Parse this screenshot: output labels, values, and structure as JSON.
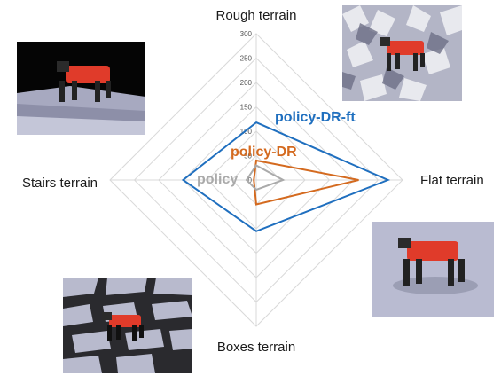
{
  "chart_data": {
    "type": "radar",
    "axes": [
      "Rough terrain",
      "Flat terrain",
      "Boxes terrain",
      "Stairs terrain"
    ],
    "rlim": [
      0,
      300
    ],
    "ticks": [
      0,
      50,
      100,
      150,
      200,
      250,
      300
    ],
    "grid": true,
    "series": [
      {
        "name": "policy-DR-ft",
        "color": "#1f6fbf",
        "values": [
          118,
          270,
          105,
          150
        ]
      },
      {
        "name": "policy-DR",
        "color": "#d46a1f",
        "values": [
          40,
          210,
          50,
          5
        ]
      },
      {
        "name": "policy",
        "color": "#aaaaaa",
        "values": [
          30,
          55,
          20,
          20
        ]
      }
    ]
  },
  "photos": [
    {
      "name": "stairs-robot-photo",
      "caption": ""
    },
    {
      "name": "rough-robot-photo",
      "caption": ""
    },
    {
      "name": "flat-robot-photo",
      "caption": ""
    },
    {
      "name": "boxes-robot-photo",
      "caption": ""
    }
  ],
  "colors": {
    "grid": "#d9d9d9",
    "robot": "#e03b2a",
    "ground": "#b7b9cf"
  }
}
